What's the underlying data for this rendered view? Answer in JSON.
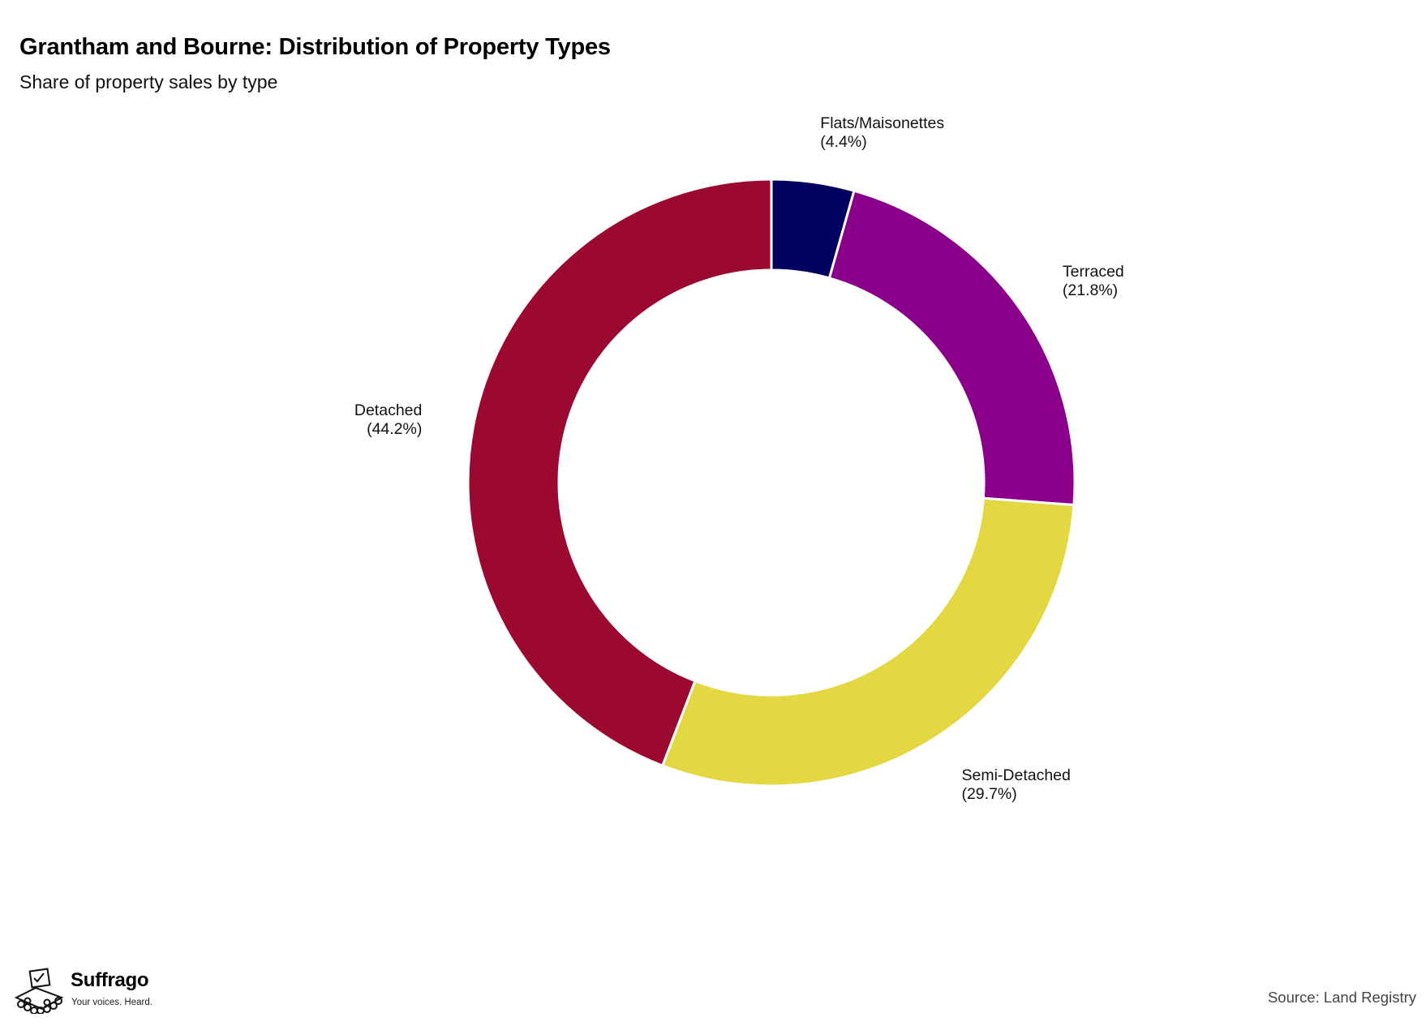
{
  "header": {
    "title": "Grantham and Bourne: Distribution of Property Types",
    "subtitle": "Share of property sales by type"
  },
  "chart_data": {
    "type": "pie",
    "style": "donut",
    "title": "Grantham and Bourne: Distribution of Property Types",
    "subtitle": "Share of property sales by type",
    "start_angle": "12 o'clock",
    "direction": "clockwise",
    "slices": [
      {
        "label": "Flats/Maisonettes",
        "value": 4.4,
        "display": "(4.4%)",
        "color": "#000060"
      },
      {
        "label": "Terraced",
        "value": 21.8,
        "display": "(21.8%)",
        "color": "#8b008b"
      },
      {
        "label": "Semi-Detached",
        "value": 29.7,
        "display": "(29.7%)",
        "color": "#e3d742"
      },
      {
        "label": "Detached",
        "value": 44.2,
        "display": "(44.2%)",
        "color": "#9b0931"
      }
    ]
  },
  "footer": {
    "brand": "Suffrago",
    "tagline": "Your voices. Heard.",
    "logo_icon": "ballot-box-icon",
    "source": "Source: Land Registry"
  }
}
